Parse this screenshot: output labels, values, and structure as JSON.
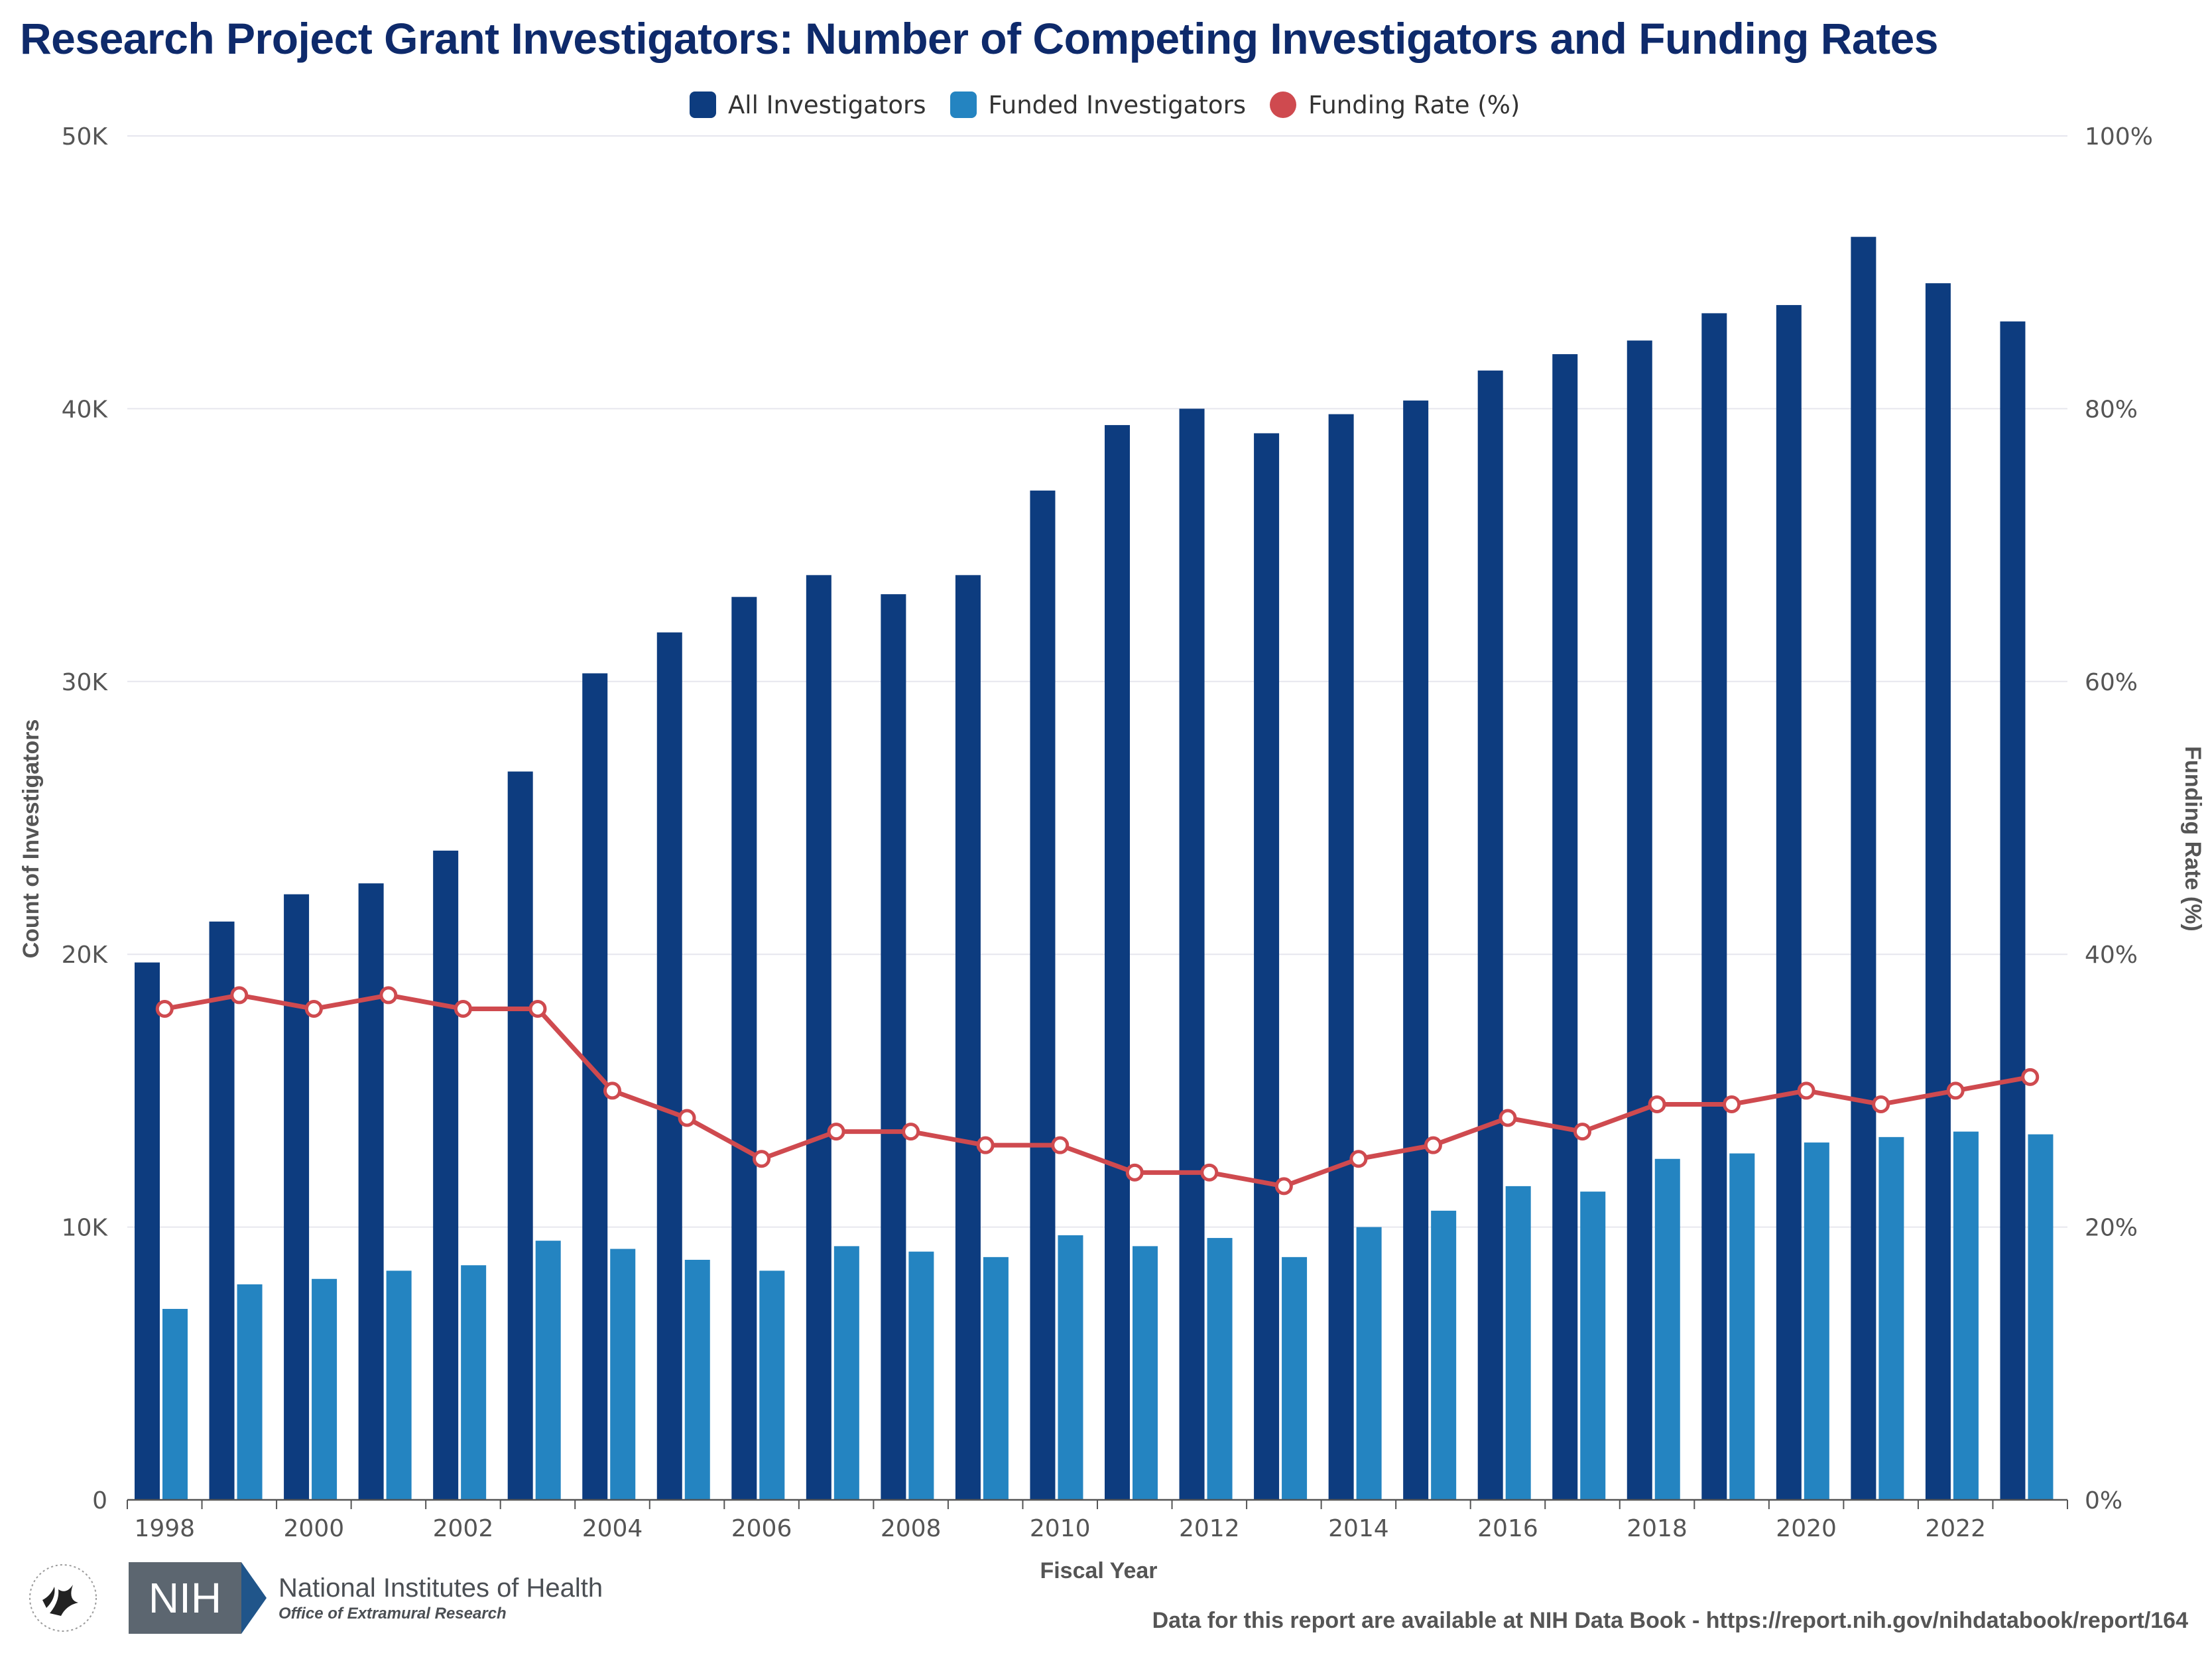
{
  "title": "Research Project Grant Investigators: Number of Competing Investigators and Funding Rates",
  "colors": {
    "title": "#0e2a6b",
    "all_investigators": "#0d3c7f",
    "funded_investigators": "#2484c1",
    "funding_rate": "#cf4a4f",
    "grid": "#e6e6ee",
    "axis": "#555555"
  },
  "legend": [
    {
      "label": "All Investigators",
      "color": "#0d3c7f",
      "shape": "square"
    },
    {
      "label": "Funded Investigators",
      "color": "#2484c1",
      "shape": "square"
    },
    {
      "label": "Funding Rate (%)",
      "color": "#cf4a4f",
      "shape": "circle"
    }
  ],
  "chart_data": {
    "type": "bar",
    "title": "Research Project Grant Investigators: Number of Competing Investigators and Funding Rates",
    "xlabel": "Fiscal Year",
    "ylabel": "Count of Investigators",
    "y2label": "Funding Rate (%)",
    "categories": [
      1998,
      1999,
      2000,
      2001,
      2002,
      2003,
      2004,
      2005,
      2006,
      2007,
      2008,
      2009,
      2010,
      2011,
      2012,
      2013,
      2014,
      2015,
      2016,
      2017,
      2018,
      2019,
      2020,
      2021,
      2022,
      2023
    ],
    "x_tick_labels": [
      "1998",
      "2000",
      "2002",
      "2004",
      "2006",
      "2008",
      "2010",
      "2012",
      "2014",
      "2016",
      "2018",
      "2020",
      "2022"
    ],
    "y_ticks": [
      "0",
      "10K",
      "20K",
      "30K",
      "40K",
      "50K"
    ],
    "y2_ticks": [
      "0%",
      "20%",
      "40%",
      "60%",
      "80%",
      "100%"
    ],
    "ylim": [
      0,
      50000
    ],
    "y2lim": [
      0,
      100
    ],
    "grid": true,
    "legend_position": "top-center",
    "series": [
      {
        "name": "All Investigators",
        "axis": "left",
        "kind": "bar",
        "values": [
          19700,
          21200,
          22200,
          22600,
          23800,
          26700,
          30300,
          31800,
          33100,
          33900,
          33200,
          33900,
          37000,
          39400,
          40000,
          39100,
          39800,
          40300,
          41400,
          42000,
          42500,
          43500,
          43800,
          46300,
          44600,
          43200
        ]
      },
      {
        "name": "Funded Investigators",
        "axis": "left",
        "kind": "bar",
        "values": [
          7000,
          7900,
          8100,
          8400,
          8600,
          9500,
          9200,
          8800,
          8400,
          9300,
          9100,
          8900,
          9700,
          9300,
          9600,
          8900,
          10000,
          10600,
          11500,
          11300,
          12500,
          12700,
          13100,
          13300,
          13500,
          13400
        ]
      },
      {
        "name": "Funding Rate (%)",
        "axis": "right",
        "kind": "line",
        "values": [
          36,
          37,
          36,
          37,
          36,
          36,
          30,
          28,
          25,
          27,
          27,
          26,
          26,
          24,
          24,
          23,
          25,
          26,
          28,
          27,
          29,
          29,
          30,
          29,
          30,
          31
        ]
      }
    ]
  },
  "footer": {
    "agency_short": "NIH",
    "agency_name": "National Institutes of Health",
    "office": "Office of Extramural Research",
    "note": "Data for this report are available at NIH Data Book - https://report.nih.gov/nihdatabook/report/164"
  }
}
